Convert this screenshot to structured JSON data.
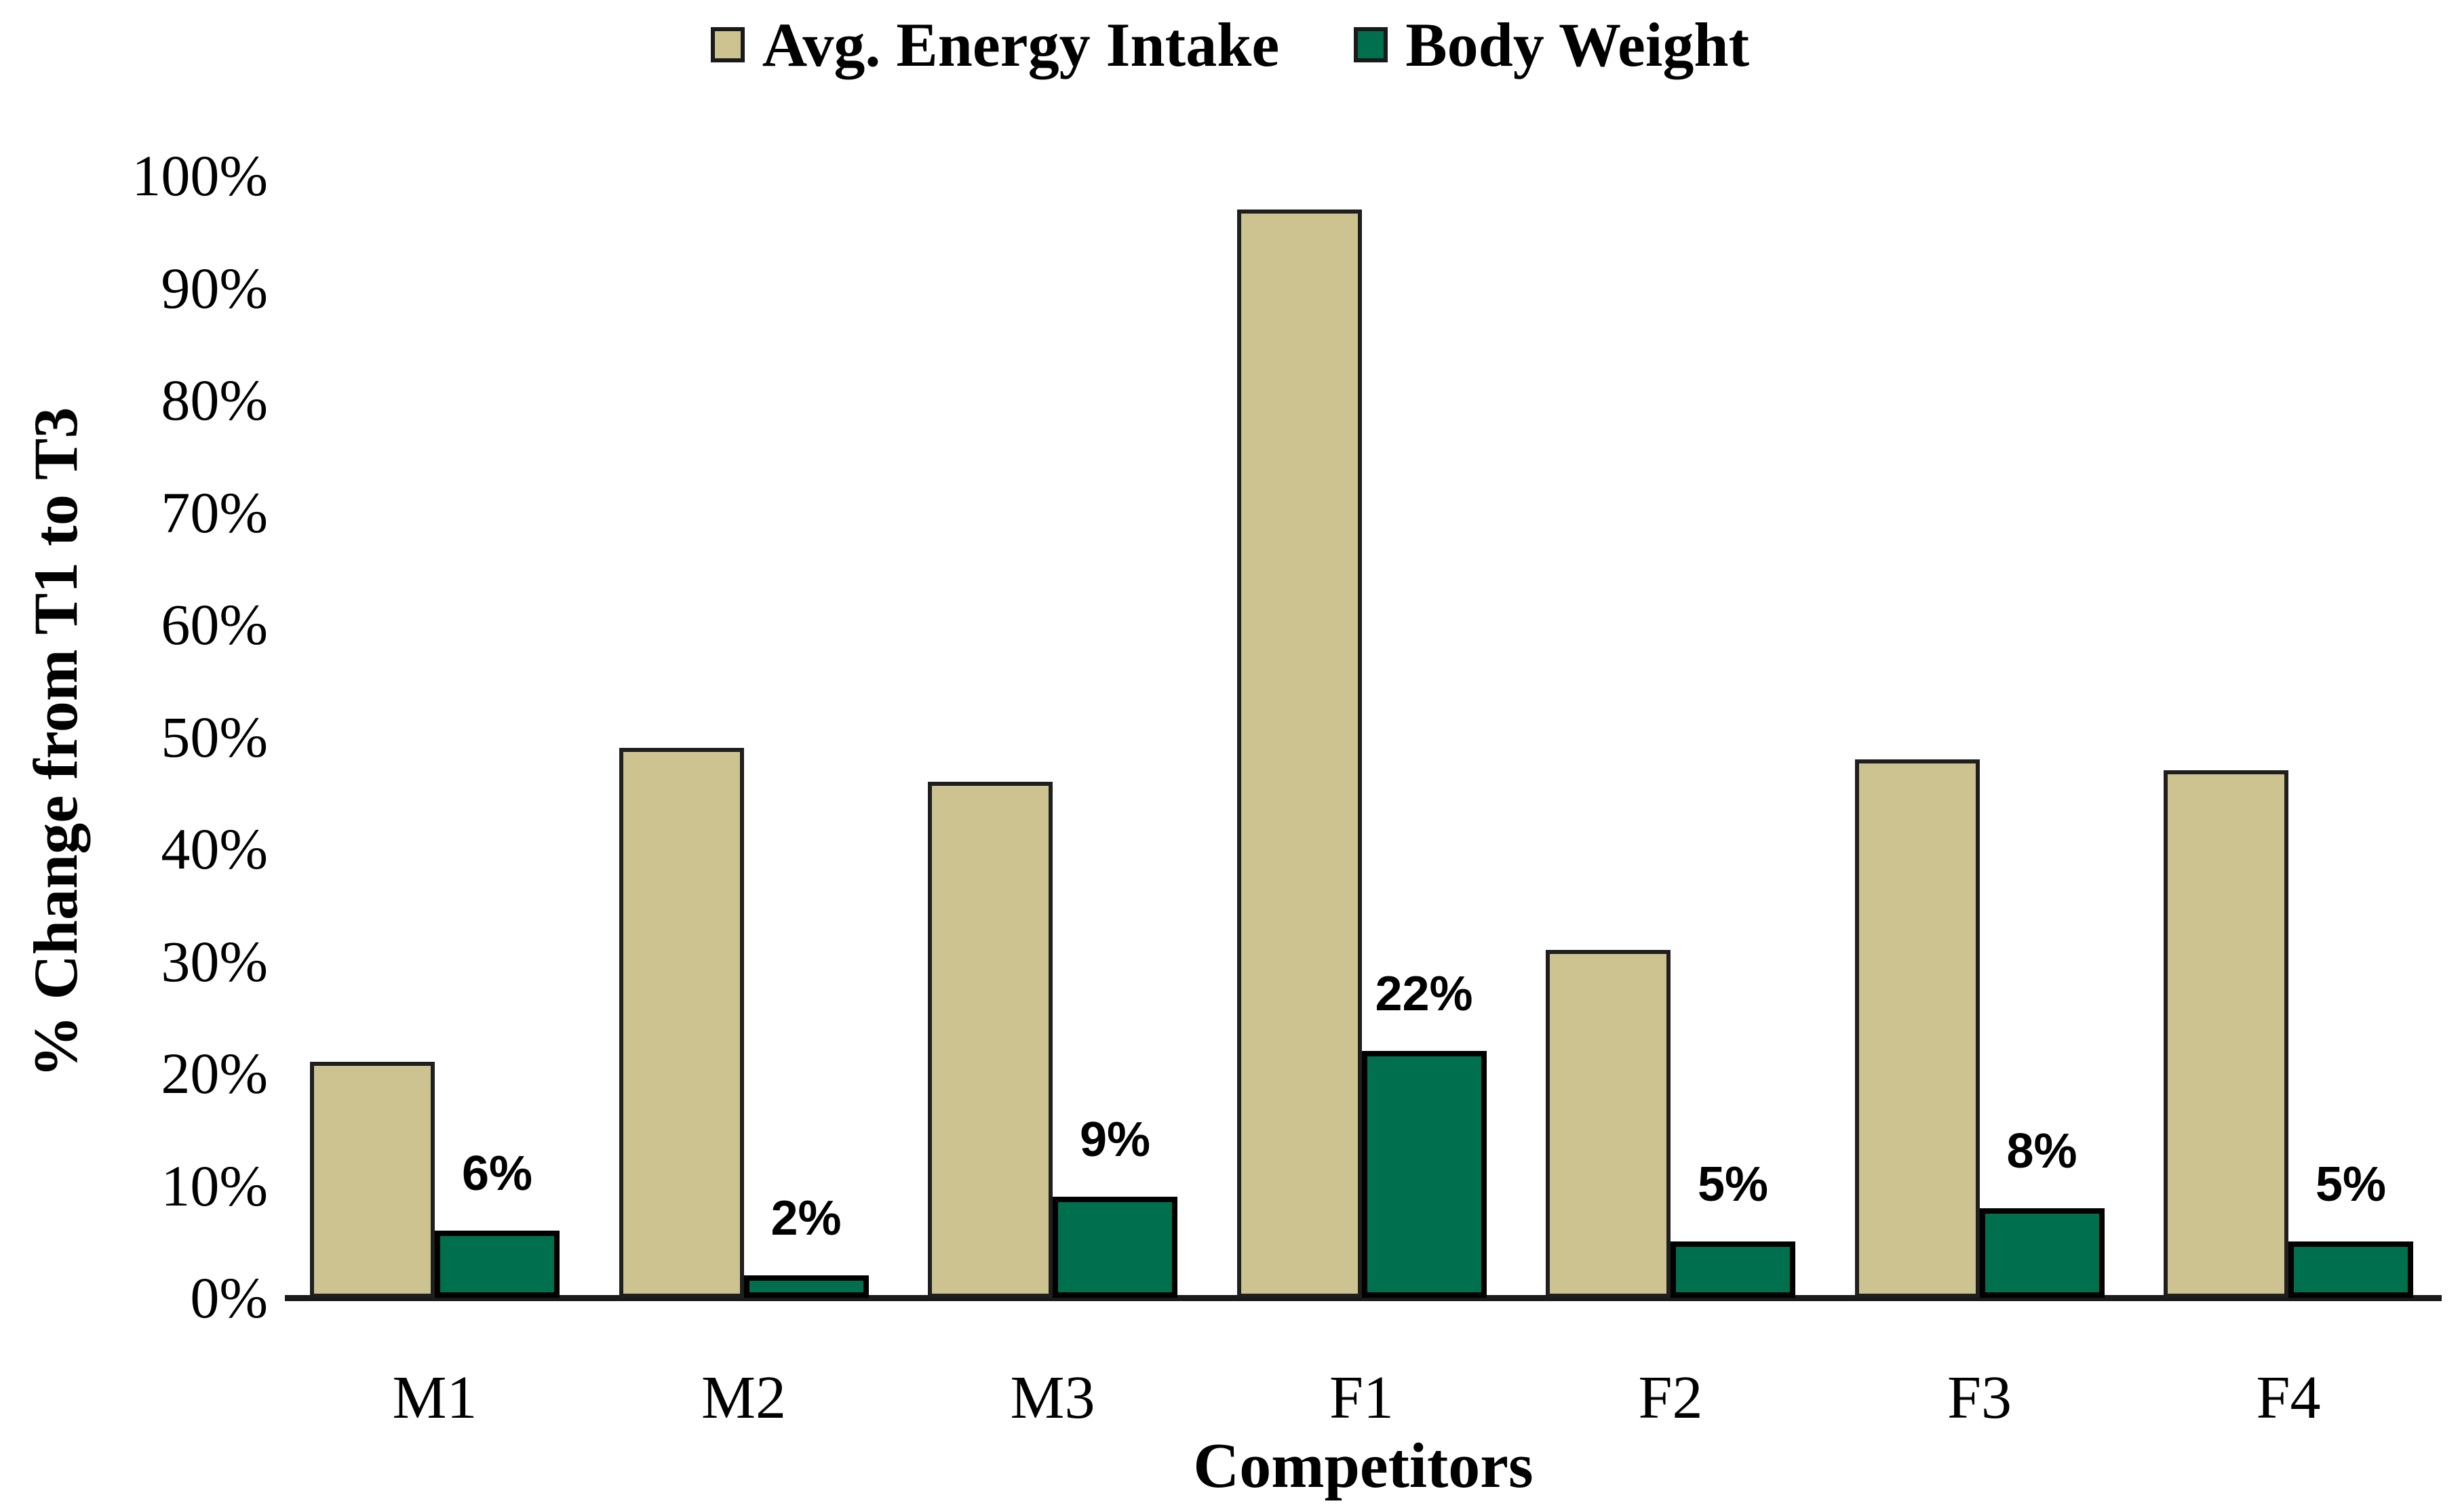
{
  "chart_data": {
    "type": "bar",
    "title": "",
    "categories": [
      "M1",
      "M2",
      "M3",
      "F1",
      "F2",
      "F3",
      "F4"
    ],
    "series": [
      {
        "name": "Avg. Energy Intake",
        "color": "#cdc391",
        "values": [
          21,
          49,
          46,
          97,
          31,
          48,
          47
        ],
        "data_labels": []
      },
      {
        "name": "Body Weight",
        "color": "#006f4e",
        "values": [
          6,
          2,
          9,
          22,
          5,
          8,
          5
        ],
        "data_labels": [
          "6%",
          "2%",
          "9%",
          "22%",
          "5%",
          "8%",
          "5%"
        ]
      }
    ],
    "xlabel": "Competitors",
    "ylabel": "% Change from T1 to T3",
    "ylim": [
      0,
      100
    ],
    "ytick_step": 10,
    "ytick_labels": [
      "0%",
      "10%",
      "20%",
      "30%",
      "40%",
      "50%",
      "60%",
      "70%",
      "80%",
      "90%",
      "100%"
    ],
    "grid": false,
    "legend_position": "top"
  },
  "legend": {
    "energy_label": "Avg. Energy Intake",
    "body_label": "Body Weight"
  },
  "axes": {
    "y_title": "% Change from T1 to T3",
    "x_title": "Competitors"
  },
  "colors": {
    "energy_fill": "#cdc391",
    "body_fill": "#006f4e",
    "bar_border": "#1f1f1f",
    "axis_line": "#1a1a1a",
    "text": "#000000",
    "background": "#ffffff"
  }
}
